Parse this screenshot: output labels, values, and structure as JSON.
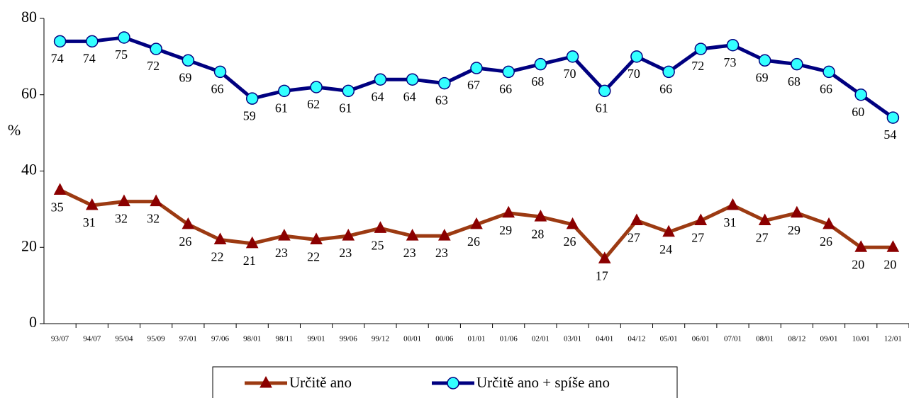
{
  "chart_data": {
    "type": "line",
    "ylabel": "%",
    "categories": [
      "93/07",
      "94/07",
      "95/04",
      "95/09",
      "97/01",
      "97/06",
      "98/01",
      "98/11",
      "99/01",
      "99/06",
      "99/12",
      "00/01",
      "00/06",
      "01/01",
      "01/06",
      "02/01",
      "03/01",
      "04/01",
      "04/12",
      "05/01",
      "06/01",
      "07/01",
      "08/01",
      "08/12",
      "09/01",
      "10/01",
      "12/01"
    ],
    "series": [
      {
        "name": "Určitě ano",
        "color": "#9c3a12",
        "marker_color": "#8b0000",
        "marker": "triangle",
        "values": [
          35,
          31,
          32,
          32,
          26,
          22,
          21,
          23,
          22,
          23,
          25,
          23,
          23,
          26,
          29,
          28,
          26,
          17,
          27,
          24,
          27,
          31,
          27,
          29,
          26,
          20,
          20
        ]
      },
      {
        "name": "Určitě ano + spíše ano",
        "color": "#000080",
        "marker_color": "#33ffff",
        "marker": "circle",
        "values": [
          74,
          74,
          75,
          72,
          69,
          66,
          59,
          61,
          62,
          61,
          64,
          64,
          63,
          67,
          66,
          68,
          70,
          61,
          70,
          66,
          72,
          73,
          69,
          68,
          66,
          60,
          54
        ]
      }
    ],
    "ylim": [
      0,
      80
    ],
    "yticks": [
      0,
      20,
      40,
      60,
      80
    ],
    "legend": "bottom"
  }
}
